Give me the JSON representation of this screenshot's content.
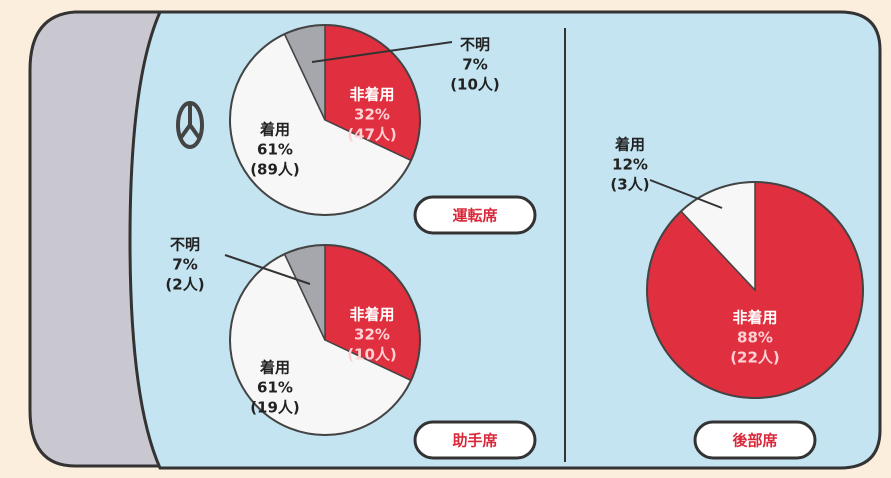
{
  "chart_data": [
    {
      "type": "pie",
      "title": "運転席",
      "categories": [
        "非着用",
        "着用",
        "不明"
      ],
      "values": [
        32,
        61,
        7
      ],
      "value_labels": [
        "32%",
        "61%",
        "7%"
      ],
      "counts": [
        47,
        89,
        10
      ],
      "count_labels": [
        "(47人)",
        "(89人)",
        "(10人)"
      ],
      "colors": [
        "#e0303f",
        "#f7f7f7",
        "#a5a7ad"
      ]
    },
    {
      "type": "pie",
      "title": "助手席",
      "categories": [
        "非着用",
        "着用",
        "不明"
      ],
      "values": [
        32,
        61,
        7
      ],
      "value_labels": [
        "32%",
        "61%",
        "7%"
      ],
      "counts": [
        10,
        19,
        2
      ],
      "count_labels": [
        "(10人)",
        "(19人)",
        "(2人)"
      ],
      "colors": [
        "#e0303f",
        "#f7f7f7",
        "#a5a7ad"
      ]
    },
    {
      "type": "pie",
      "title": "後部席",
      "categories": [
        "非着用",
        "着用"
      ],
      "values": [
        88,
        12
      ],
      "value_labels": [
        "88%",
        "12%"
      ],
      "counts": [
        22,
        3
      ],
      "count_labels": [
        "(22人)",
        "(3人)"
      ],
      "colors": [
        "#e0303f",
        "#f7f7f7"
      ]
    }
  ]
}
